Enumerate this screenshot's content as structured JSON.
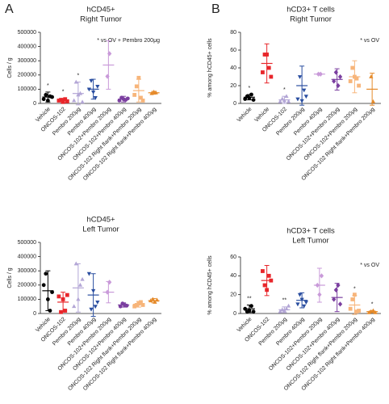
{
  "chart_data": [
    {
      "type": "dot",
      "panel": "A",
      "title": "hCD45+",
      "subtitle": "Right Tumor",
      "ylabel": "Cells / g",
      "ylim": [
        0,
        500000
      ],
      "yticks": [
        0,
        100000,
        200000,
        300000,
        400000,
        500000
      ],
      "note": "* vs OV + Pembro 200μg",
      "categories": [
        "Vehicle",
        "ONCOS-102",
        "Pembro 200μg",
        "Pembro 400μg",
        "ONCOS-102+Pembro 200μg",
        "ONCOS-102+Pembro 400μg",
        "ONCOS-102 Right flank+Pembro 200μg",
        "ONCOS-102 Right flank+Pembro 400μg"
      ],
      "stars": [
        "*",
        "*",
        "*",
        null,
        null,
        null,
        null,
        null
      ],
      "groups": [
        {
          "color": "#000000",
          "marker": "circle",
          "points": [
            30000,
            60000,
            20000,
            50000,
            45000
          ],
          "mean": 45000,
          "error": 35000
        },
        {
          "color": "#e8262b",
          "marker": "square",
          "points": [
            20000,
            25000,
            10000,
            30000,
            15000
          ],
          "mean": 20000,
          "error": 15000
        },
        {
          "color": "#b3a6d6",
          "marker": "triangle",
          "points": [
            20000,
            150000,
            60000,
            70000,
            10000
          ],
          "mean": 70000,
          "error": 80000
        },
        {
          "color": "#2a4ea0",
          "marker": "down",
          "points": [
            100000,
            160000,
            80000,
            40000,
            120000
          ],
          "mean": 100000,
          "error": 70000
        },
        {
          "color": "#c99ad9",
          "marker": "diamond",
          "points": [
            190000,
            350000
          ],
          "mean": 270000,
          "error": 170000
        },
        {
          "color": "#7b3fa0",
          "marker": "circle",
          "points": [
            20000,
            40000,
            30000,
            25000,
            35000
          ],
          "mean": 30000,
          "error": 20000
        },
        {
          "color": "#f7b57a",
          "marker": "square",
          "points": [
            60000,
            120000,
            180000,
            40000,
            20000
          ],
          "mean": 90000,
          "error": 80000
        },
        {
          "color": "#e58a2a",
          "marker": "triangle",
          "points": [
            70000,
            80000,
            75000
          ],
          "mean": 75000,
          "error": 10000
        }
      ]
    },
    {
      "type": "dot",
      "panel": "B",
      "title": "hCD3+ T cells",
      "subtitle": "Right Tumor",
      "ylabel": "% among hCD45+ cells",
      "ylim": [
        0,
        80
      ],
      "yticks": [
        0,
        20,
        40,
        60,
        80
      ],
      "note": "* vs OV",
      "categories": [
        "Vehicle",
        "Vehicle",
        "ONCOS-102",
        "Pembro 200μg",
        "Pembro 400μg",
        "ONCOS-102+Pembro 200μg",
        "ONCOS-102+Pembro 200μg",
        "ONCOS-102 Right flank+Pembro 200μg"
      ],
      "stars": [
        "*",
        null,
        "*",
        null,
        null,
        null,
        null,
        null
      ],
      "groups": [
        {
          "color": "#000000",
          "marker": "circle",
          "points": [
            5,
            8,
            6,
            10,
            4
          ],
          "mean": 7,
          "error": 3
        },
        {
          "color": "#e8262b",
          "marker": "square",
          "points": [
            35,
            55,
            55,
            40,
            30
          ],
          "mean": 45,
          "error": 22
        },
        {
          "color": "#b3a6d6",
          "marker": "triangle",
          "points": [
            2,
            5,
            3,
            8,
            2
          ],
          "mean": 4,
          "error": 4
        },
        {
          "color": "#2a4ea0",
          "marker": "down",
          "points": [
            5,
            30,
            3,
            15,
            8
          ],
          "mean": 20,
          "error": 22
        },
        {
          "color": "#c99ad9",
          "marker": "diamond",
          "points": [
            33,
            33
          ],
          "mean": 33,
          "error": 1
        },
        {
          "color": "#7b3fa0",
          "marker": "diamond",
          "points": [
            25,
            35,
            20,
            30
          ],
          "mean": 27,
          "error": 12
        },
        {
          "color": "#f7b57a",
          "marker": "square",
          "points": [
            25,
            40,
            30,
            28,
            20
          ],
          "mean": 30,
          "error": 18
        },
        {
          "color": "#e58a2a",
          "marker": "triangle",
          "points": [
            30,
            2
          ],
          "mean": 16,
          "error": 18
        }
      ]
    },
    {
      "type": "dot",
      "title": "hCD45+",
      "subtitle": "Left Tumor",
      "ylabel": "Cells / g",
      "ylim": [
        0,
        500000
      ],
      "yticks": [
        0,
        100000,
        200000,
        300000,
        400000,
        500000
      ],
      "categories": [
        "Vehicle",
        "ONCOS-102",
        "Pembro 200μg",
        "Pembro 400μg",
        "ONCOS-102+Pembro 200μg",
        "ONCOS-102+Pembro 400μg",
        "ONCOS-102 Right flank+Pembro 200μg",
        "ONCOS-102 Right flank+Pembro 400μg"
      ],
      "groups": [
        {
          "color": "#000000",
          "marker": "circle",
          "points": [
            200000,
            280000,
            100000,
            20000,
            150000
          ],
          "mean": 160000,
          "error": 140000
        },
        {
          "color": "#e8262b",
          "marker": "square",
          "points": [
            120000,
            10000,
            100000,
            20000,
            130000
          ],
          "mean": 80000,
          "error": 70000
        },
        {
          "color": "#b3a6d6",
          "marker": "triangle",
          "points": [
            50000,
            350000,
            100000,
            200000,
            240000
          ],
          "mean": 180000,
          "error": 170000
        },
        {
          "color": "#2a4ea0",
          "marker": "down",
          "points": [
            280000,
            30000,
            160000,
            50000,
            80000
          ],
          "mean": 130000,
          "error": 150000
        },
        {
          "color": "#c99ad9",
          "marker": "diamond",
          "points": [
            150000,
            220000
          ],
          "mean": 150000,
          "error": 75000
        },
        {
          "color": "#7b3fa0",
          "marker": "circle",
          "points": [
            50000,
            70000,
            60000,
            55000
          ],
          "mean": 60000,
          "error": 15000
        },
        {
          "color": "#f7b57a",
          "marker": "square",
          "points": [
            50000,
            60000,
            70000,
            80000,
            60000
          ],
          "mean": 65000,
          "error": 20000
        },
        {
          "color": "#e58a2a",
          "marker": "triangle",
          "points": [
            90000,
            100000,
            80000,
            95000
          ],
          "mean": 90000,
          "error": 15000
        }
      ]
    },
    {
      "type": "dot",
      "title": "hCD3+ T cells",
      "subtitle": "Left Tumor",
      "ylabel": "% among hCD45+ cells",
      "ylim": [
        0,
        60
      ],
      "yticks": [
        0,
        20,
        40,
        60
      ],
      "note": "* vs OV",
      "categories": [
        "Vehicle",
        "ONCOS-102",
        "Pembro 200μg",
        "Pembro 400μg",
        "ONCOS-102+Pembro 200μg",
        "ONCOS-102+Pembro 400μg",
        "ONCOS-102 Right flank+Pembro 200μg",
        "ONCOS-102 Right flank+Pembro 400μg"
      ],
      "stars": [
        "**",
        null,
        "**",
        null,
        null,
        null,
        "*",
        "*"
      ],
      "groups": [
        {
          "color": "#000000",
          "marker": "circle",
          "points": [
            5,
            2,
            3,
            8,
            2
          ],
          "mean": 5,
          "error": 4
        },
        {
          "color": "#e8262b",
          "marker": "square",
          "points": [
            45,
            30,
            25,
            40,
            35
          ],
          "mean": 35,
          "error": 16
        },
        {
          "color": "#b3a6d6",
          "marker": "triangle",
          "points": [
            2,
            4,
            3,
            5,
            8
          ],
          "mean": 4,
          "error": 3
        },
        {
          "color": "#2a4ea0",
          "marker": "down",
          "points": [
            10,
            20,
            15,
            8,
            12
          ],
          "mean": 14,
          "error": 8
        },
        {
          "color": "#c99ad9",
          "marker": "diamond",
          "points": [
            30,
            20,
            40
          ],
          "mean": 30,
          "error": 18
        },
        {
          "color": "#7b3fa0",
          "marker": "diamond",
          "points": [
            15,
            25,
            30,
            10
          ],
          "mean": 17,
          "error": 15
        },
        {
          "color": "#f7b57a",
          "marker": "square",
          "points": [
            5,
            15,
            20,
            2,
            3
          ],
          "mean": 9,
          "error": 10
        },
        {
          "color": "#e58a2a",
          "marker": "triangle",
          "points": [
            1,
            2,
            3,
            1
          ],
          "mean": 2,
          "error": 1
        }
      ]
    }
  ]
}
